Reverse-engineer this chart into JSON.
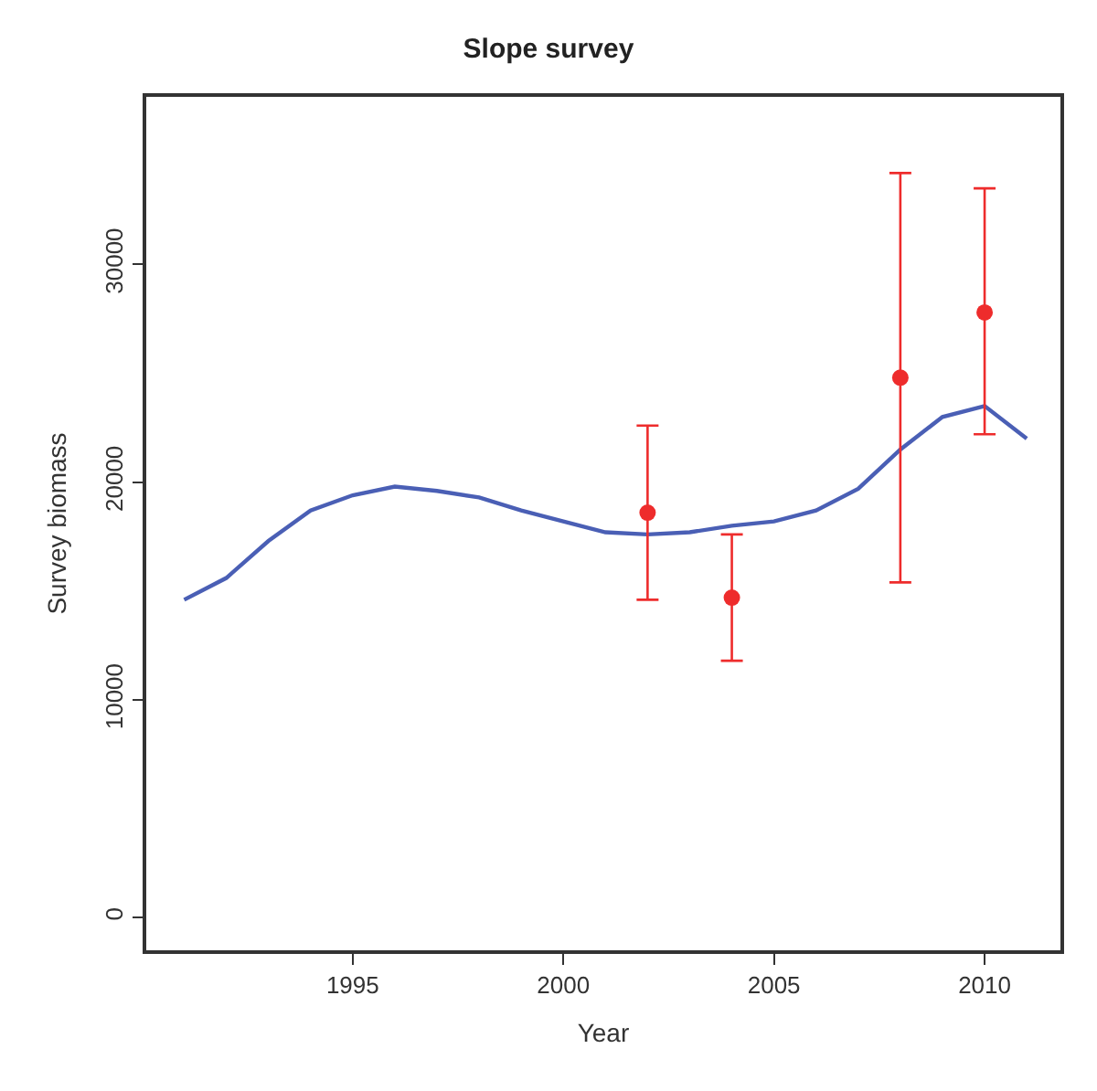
{
  "chart_data": {
    "type": "line",
    "title": "Slope survey",
    "xlabel": "Year",
    "ylabel": "Survey biomass",
    "xlim": [
      1990.1,
      2011.8
    ],
    "xticks": [
      1995,
      2000,
      2005,
      2010
    ],
    "ylim": [
      -1500,
      37700
    ],
    "yticks": [
      0,
      10000,
      20000,
      30000
    ],
    "series": [
      {
        "color": "#4a5fb5",
        "marker": "none",
        "x": [
          1991,
          1992,
          1993,
          1994,
          1995,
          1996,
          1997,
          1998,
          1999,
          2000,
          2001,
          2002,
          2003,
          2004,
          2005,
          2006,
          2007,
          2008,
          2009,
          2010,
          2011
        ],
        "values": [
          14600,
          15600,
          17300,
          18700,
          19400,
          19800,
          19600,
          19300,
          18700,
          18200,
          17700,
          17600,
          17700,
          18000,
          18200,
          18700,
          19700,
          21500,
          23000,
          23500,
          22000
        ]
      },
      {
        "type": "scatter",
        "color": "#ee2c2c",
        "marker": "circle",
        "x": [
          2002,
          2004,
          2008,
          2010
        ],
        "values": [
          18600,
          14700,
          24800,
          27800
        ],
        "errors": [
          [
            14600,
            22600
          ],
          [
            11800,
            17600
          ],
          [
            15400,
            34200
          ],
          [
            22200,
            33500
          ]
        ]
      }
    ]
  }
}
